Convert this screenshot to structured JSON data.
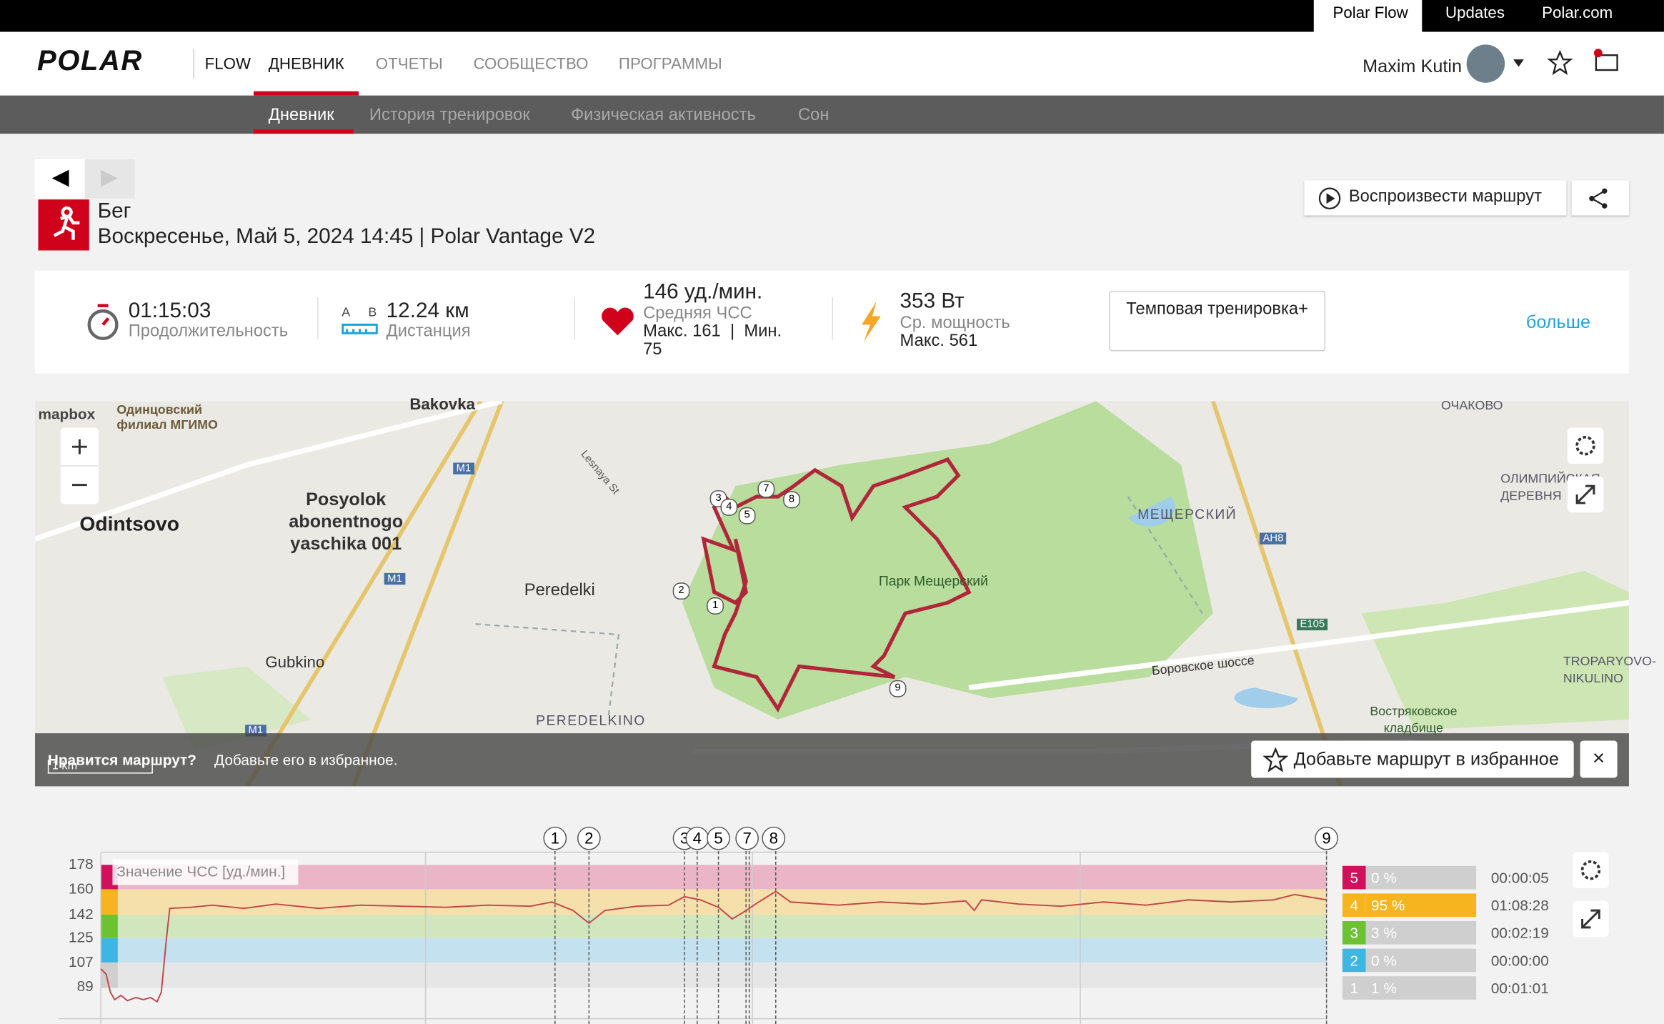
{
  "topbar": {
    "links": [
      "Polar Flow",
      "Updates",
      "Polar.com"
    ]
  },
  "nav": {
    "logo": "POLAR",
    "flow": "FLOW",
    "items": [
      "ДНЕВНИК",
      "ОТЧЕТЫ",
      "СООБЩЕСТВО",
      "ПРОГРАММЫ"
    ],
    "user": "Maxim Kutin"
  },
  "subnav": [
    "Дневник",
    "История тренировок",
    "Физическая активность",
    "Сон"
  ],
  "session": {
    "sport": "Бег",
    "date": "Воскресенье, Май 5, 2024 14:45 | Polar Vantage V2",
    "replay": "Воспроизвести маршрут"
  },
  "summary": {
    "duration": "01:15:03",
    "duration_label": "Продолжительность",
    "ab_a": "A",
    "ab_b": "B",
    "distance": "12.24 км",
    "distance_label": "Дистанция",
    "hr": "146 уд./мин.",
    "hr_label": "Средняя ЧСС",
    "hr_minmax": "Макс. 161  |  Мин. 75",
    "power": "353 Вт",
    "power_label": "Ср. мощность",
    "power_max": "Макс. 561",
    "benefit": "Темповая тренировка+",
    "more": "больше"
  },
  "map": {
    "attribution": "mapbox",
    "labels": [
      "Одинцовский филиал МГИМО",
      "Bakovka",
      "Odintsovo",
      "Posyolok abonentnogo yaschika 001",
      "Peredelki",
      "Gubkino",
      "PEREDELKINO",
      "Парк Мещерский",
      "МЕЩЕРСКИЙ",
      "ОЧАКОВО",
      "ОЛИМПИЙСКАЯ ДЕРЕВНЯ",
      "Боровское шоссе",
      "Востряковское кладбище",
      "TROPARYOVO-NIKULINO",
      "Lesnaya St"
    ],
    "roads": [
      "M1",
      "M1",
      "M1",
      "AH8",
      "E105"
    ],
    "laps": [
      "1",
      "2",
      "3",
      "4",
      "5",
      "7",
      "8",
      "9"
    ],
    "banner_q": "Нравится маршрут?",
    "banner_text": "Добавьте его в избранное.",
    "fav": "Добавьте маршрут в избранное",
    "scale": "1 km"
  },
  "hr_chart": {
    "legend": "Значение ЧСС [уд./мин.]",
    "yticks": [
      "178",
      "160",
      "142",
      "125",
      "107",
      "89"
    ],
    "laps": [
      "1",
      "2",
      "3",
      "4",
      "5",
      "7",
      "8",
      "9"
    ],
    "zones": [
      {
        "zone": "5",
        "pct": "0 %",
        "time": "00:00:05"
      },
      {
        "zone": "4",
        "pct": "95 %",
        "time": "01:08:28"
      },
      {
        "zone": "3",
        "pct": "3 %",
        "time": "00:02:19"
      },
      {
        "zone": "2",
        "pct": "0 %",
        "time": "00:00:00"
      },
      {
        "zone": "1",
        "pct": "1 %",
        "time": "00:01:01"
      }
    ]
  }
}
